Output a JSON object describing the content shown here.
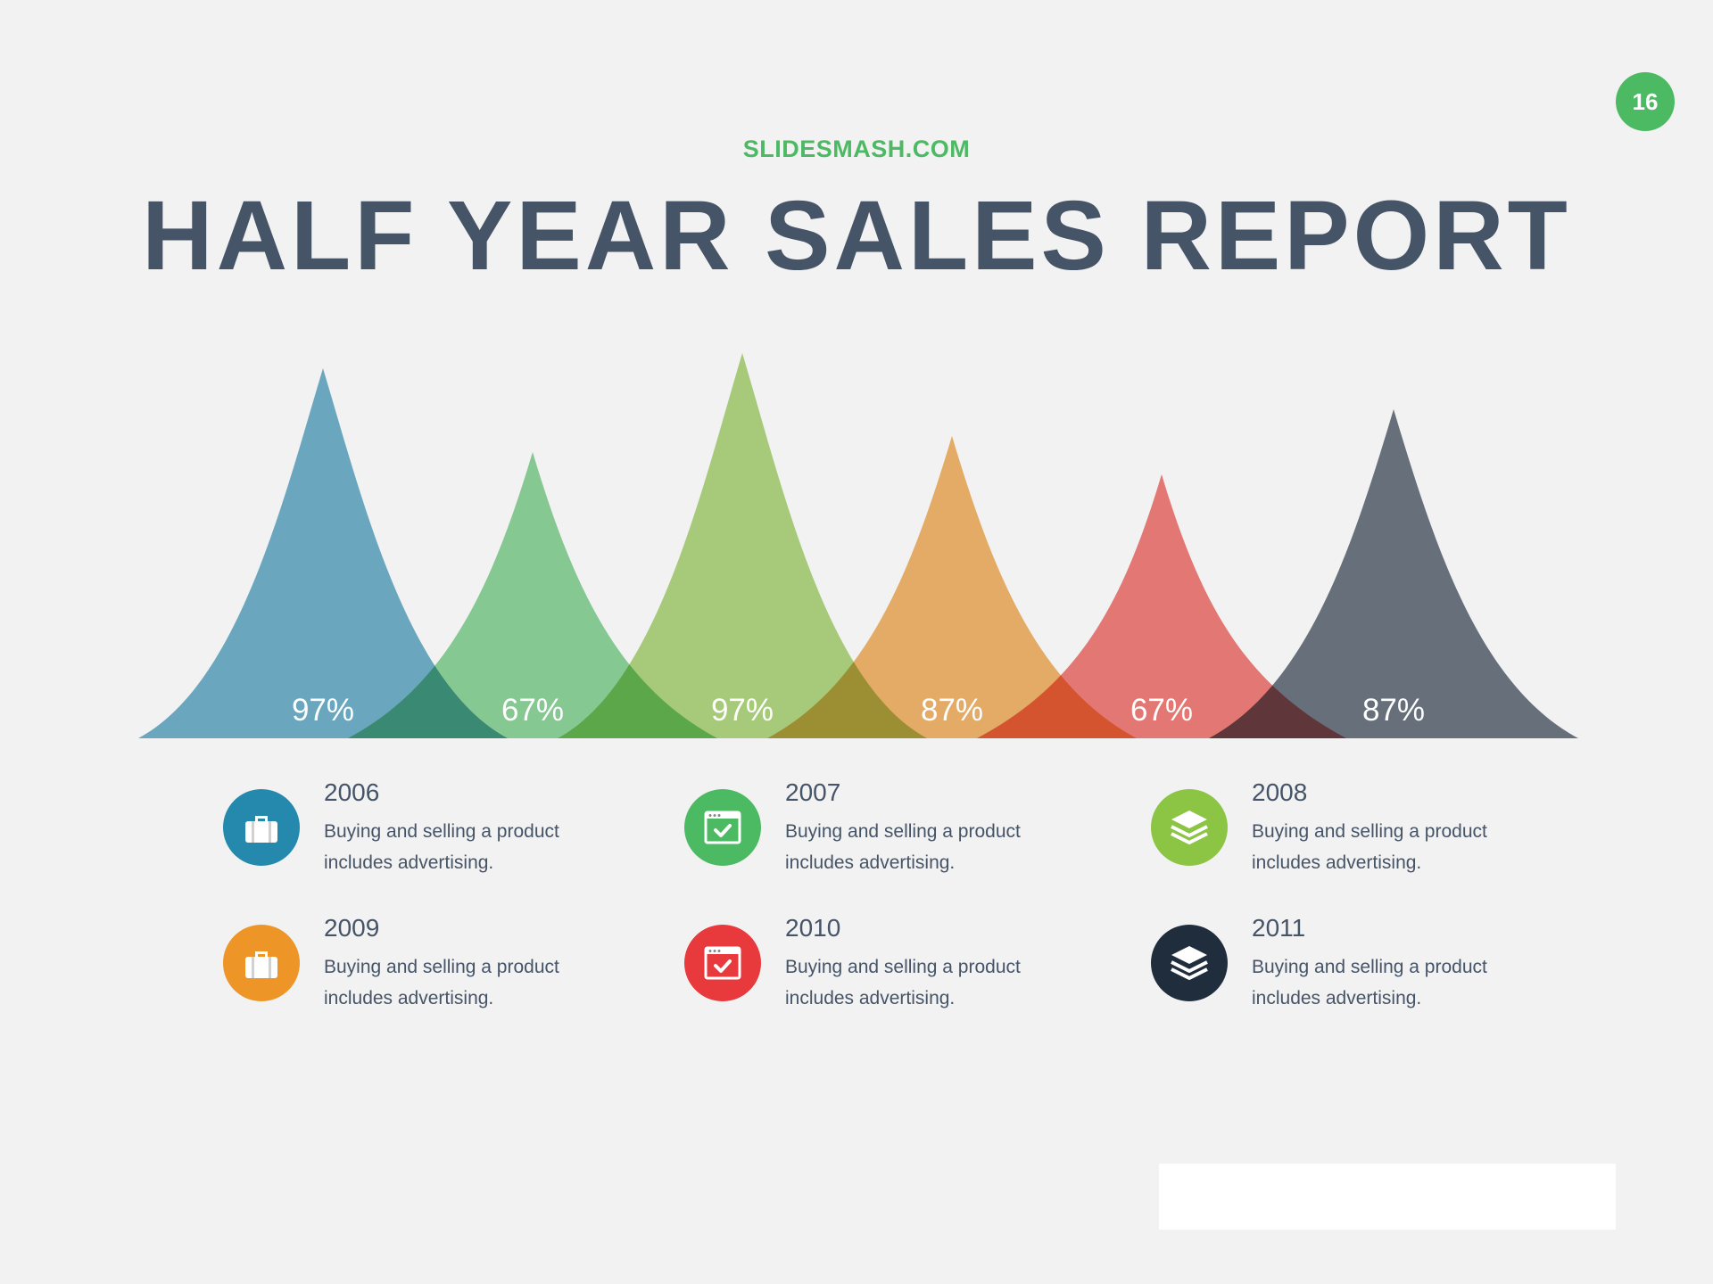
{
  "page_number": "16",
  "brand": "SLIDESMASH.COM",
  "title": "HALF YEAR SALES REPORT",
  "chart_data": {
    "type": "area",
    "title": "HALF YEAR SALES REPORT",
    "categories": [
      "2006",
      "2007",
      "2008",
      "2009",
      "2010",
      "2011"
    ],
    "values": [
      97,
      67,
      97,
      87,
      67,
      87
    ],
    "labels": [
      "97%",
      "67%",
      "97%",
      "87%",
      "67%",
      "87%"
    ],
    "colors": [
      "#5ca5c3",
      "#7ccd8c",
      "#a4cf6e",
      "#eeaa55",
      "#ee6b66",
      "#566270"
    ],
    "grid": false,
    "legend": "below"
  },
  "legend": [
    {
      "year": "2006",
      "desc": "Buying and selling a product includes advertising.",
      "icon": "briefcase-icon",
      "color": "#2489ad"
    },
    {
      "year": "2007",
      "desc": "Buying and selling a product includes advertising.",
      "icon": "browser-check-icon",
      "color": "#4cb963"
    },
    {
      "year": "2008",
      "desc": "Buying and selling a product includes advertising.",
      "icon": "layers-icon",
      "color": "#8cc444"
    },
    {
      "year": "2009",
      "desc": "Buying and selling a product includes advertising.",
      "icon": "briefcase-icon",
      "color": "#ee9528"
    },
    {
      "year": "2010",
      "desc": "Buying and selling a product includes advertising.",
      "icon": "browser-check-icon",
      "color": "#e8393c"
    },
    {
      "year": "2011",
      "desc": "Buying and selling a product includes advertising.",
      "icon": "layers-icon",
      "color": "#1f2d3d"
    }
  ]
}
